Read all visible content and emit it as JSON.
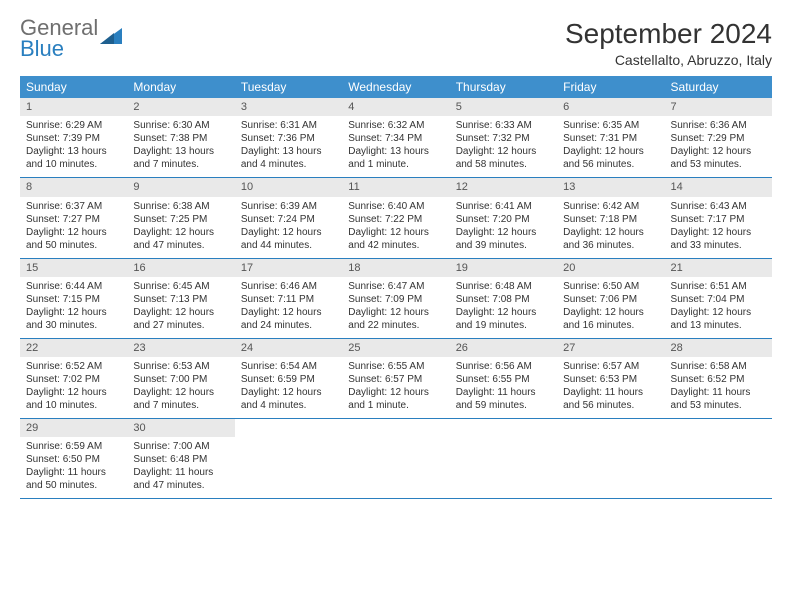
{
  "logo": {
    "line1": "General",
    "line2": "Blue"
  },
  "title": "September 2024",
  "subtitle": "Castellalto, Abruzzo, Italy",
  "dayNames": [
    "Sunday",
    "Monday",
    "Tuesday",
    "Wednesday",
    "Thursday",
    "Friday",
    "Saturday"
  ],
  "colors": {
    "headerBg": "#3e8fcc",
    "headerText": "#ffffff",
    "dayNumBg": "#e9e9e9",
    "dayNumText": "#555555",
    "weekBorder": "#2a7fbf",
    "bodyText": "#333333",
    "logoGray": "#6f6f6f",
    "logoBlue": "#2a7fbf"
  },
  "weeks": [
    [
      {
        "n": "1",
        "sr": "6:29 AM",
        "ss": "7:39 PM",
        "dl": "13 hours and 10 minutes."
      },
      {
        "n": "2",
        "sr": "6:30 AM",
        "ss": "7:38 PM",
        "dl": "13 hours and 7 minutes."
      },
      {
        "n": "3",
        "sr": "6:31 AM",
        "ss": "7:36 PM",
        "dl": "13 hours and 4 minutes."
      },
      {
        "n": "4",
        "sr": "6:32 AM",
        "ss": "7:34 PM",
        "dl": "13 hours and 1 minute."
      },
      {
        "n": "5",
        "sr": "6:33 AM",
        "ss": "7:32 PM",
        "dl": "12 hours and 58 minutes."
      },
      {
        "n": "6",
        "sr": "6:35 AM",
        "ss": "7:31 PM",
        "dl": "12 hours and 56 minutes."
      },
      {
        "n": "7",
        "sr": "6:36 AM",
        "ss": "7:29 PM",
        "dl": "12 hours and 53 minutes."
      }
    ],
    [
      {
        "n": "8",
        "sr": "6:37 AM",
        "ss": "7:27 PM",
        "dl": "12 hours and 50 minutes."
      },
      {
        "n": "9",
        "sr": "6:38 AM",
        "ss": "7:25 PM",
        "dl": "12 hours and 47 minutes."
      },
      {
        "n": "10",
        "sr": "6:39 AM",
        "ss": "7:24 PM",
        "dl": "12 hours and 44 minutes."
      },
      {
        "n": "11",
        "sr": "6:40 AM",
        "ss": "7:22 PM",
        "dl": "12 hours and 42 minutes."
      },
      {
        "n": "12",
        "sr": "6:41 AM",
        "ss": "7:20 PM",
        "dl": "12 hours and 39 minutes."
      },
      {
        "n": "13",
        "sr": "6:42 AM",
        "ss": "7:18 PM",
        "dl": "12 hours and 36 minutes."
      },
      {
        "n": "14",
        "sr": "6:43 AM",
        "ss": "7:17 PM",
        "dl": "12 hours and 33 minutes."
      }
    ],
    [
      {
        "n": "15",
        "sr": "6:44 AM",
        "ss": "7:15 PM",
        "dl": "12 hours and 30 minutes."
      },
      {
        "n": "16",
        "sr": "6:45 AM",
        "ss": "7:13 PM",
        "dl": "12 hours and 27 minutes."
      },
      {
        "n": "17",
        "sr": "6:46 AM",
        "ss": "7:11 PM",
        "dl": "12 hours and 24 minutes."
      },
      {
        "n": "18",
        "sr": "6:47 AM",
        "ss": "7:09 PM",
        "dl": "12 hours and 22 minutes."
      },
      {
        "n": "19",
        "sr": "6:48 AM",
        "ss": "7:08 PM",
        "dl": "12 hours and 19 minutes."
      },
      {
        "n": "20",
        "sr": "6:50 AM",
        "ss": "7:06 PM",
        "dl": "12 hours and 16 minutes."
      },
      {
        "n": "21",
        "sr": "6:51 AM",
        "ss": "7:04 PM",
        "dl": "12 hours and 13 minutes."
      }
    ],
    [
      {
        "n": "22",
        "sr": "6:52 AM",
        "ss": "7:02 PM",
        "dl": "12 hours and 10 minutes."
      },
      {
        "n": "23",
        "sr": "6:53 AM",
        "ss": "7:00 PM",
        "dl": "12 hours and 7 minutes."
      },
      {
        "n": "24",
        "sr": "6:54 AM",
        "ss": "6:59 PM",
        "dl": "12 hours and 4 minutes."
      },
      {
        "n": "25",
        "sr": "6:55 AM",
        "ss": "6:57 PM",
        "dl": "12 hours and 1 minute."
      },
      {
        "n": "26",
        "sr": "6:56 AM",
        "ss": "6:55 PM",
        "dl": "11 hours and 59 minutes."
      },
      {
        "n": "27",
        "sr": "6:57 AM",
        "ss": "6:53 PM",
        "dl": "11 hours and 56 minutes."
      },
      {
        "n": "28",
        "sr": "6:58 AM",
        "ss": "6:52 PM",
        "dl": "11 hours and 53 minutes."
      }
    ],
    [
      {
        "n": "29",
        "sr": "6:59 AM",
        "ss": "6:50 PM",
        "dl": "11 hours and 50 minutes."
      },
      {
        "n": "30",
        "sr": "7:00 AM",
        "ss": "6:48 PM",
        "dl": "11 hours and 47 minutes."
      },
      null,
      null,
      null,
      null,
      null
    ]
  ],
  "labels": {
    "sunrise": "Sunrise:",
    "sunset": "Sunset:",
    "daylight": "Daylight:"
  }
}
